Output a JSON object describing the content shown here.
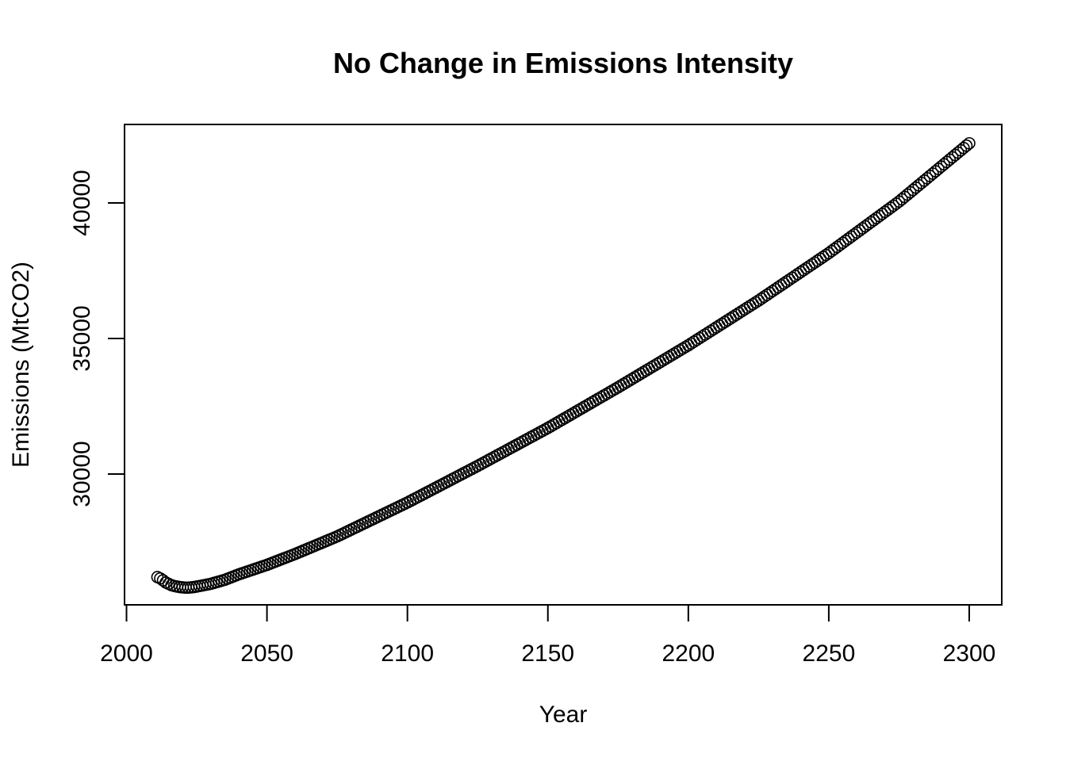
{
  "chart_data": {
    "type": "scatter",
    "title": "No Change in Emissions Intensity",
    "xlabel": "Year",
    "ylabel": "Emissions (MtCO2)",
    "xlim": [
      2010,
      2300
    ],
    "ylim": [
      25200,
      42500
    ],
    "x_ticks": [
      2000,
      2050,
      2100,
      2150,
      2200,
      2250,
      2300
    ],
    "y_ticks": [
      30000,
      35000,
      40000
    ],
    "grid": false,
    "legend": "none",
    "marker": "open-circle",
    "series": [
      {
        "x": [
          2011,
          2012,
          2013,
          2014,
          2015,
          2016,
          2017,
          2018,
          2019,
          2020,
          2021,
          2022,
          2023,
          2024,
          2025,
          2030,
          2035,
          2040,
          2050,
          2060,
          2075,
          2100,
          2125,
          2150,
          2175,
          2200,
          2225,
          2250,
          2275,
          2300
        ],
        "y": [
          26200,
          26150,
          26080,
          26000,
          25950,
          25900,
          25870,
          25850,
          25830,
          25820,
          25810,
          25810,
          25820,
          25830,
          25850,
          25950,
          26100,
          26300,
          26650,
          27050,
          27700,
          28950,
          30300,
          31700,
          33200,
          34750,
          36400,
          38150,
          40050,
          42200
        ]
      }
    ]
  }
}
